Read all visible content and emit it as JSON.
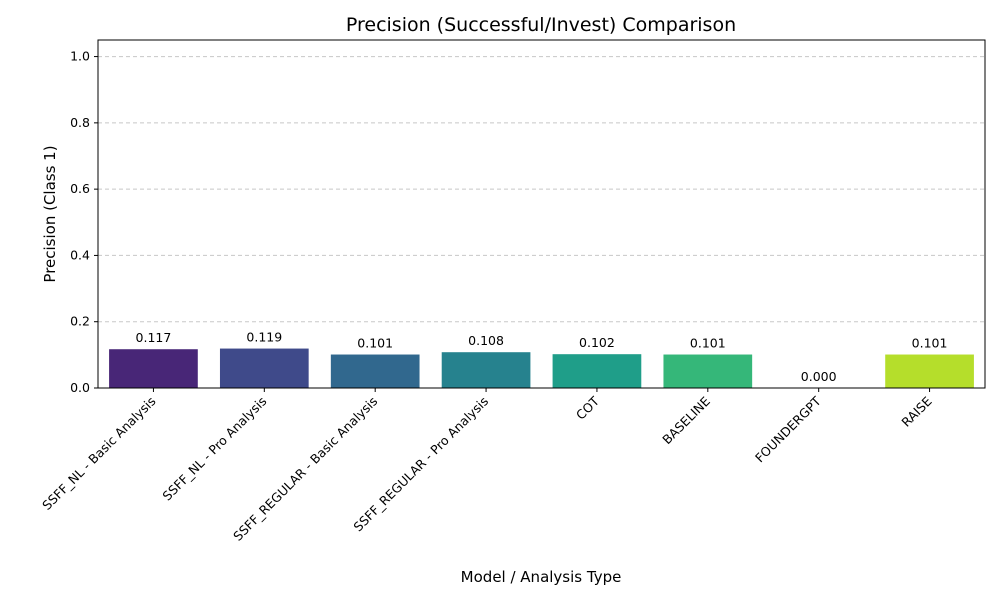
{
  "chart_data": {
    "type": "bar",
    "title": "Precision (Successful/Invest) Comparison",
    "xlabel": "Model / Analysis Type",
    "ylabel": "Precision (Class 1)",
    "categories": [
      "SSFF_NL - Basic Analysis",
      "SSFF_NL - Pro Analysis",
      "SSFF_REGULAR - Basic Analysis",
      "SSFF_REGULAR - Pro Analysis",
      "COT",
      "BASELINE",
      "FOUNDERGPT",
      "RAISE"
    ],
    "values": [
      0.117,
      0.119,
      0.101,
      0.108,
      0.102,
      0.101,
      0.0,
      0.101
    ],
    "value_labels": [
      "0.117",
      "0.119",
      "0.101",
      "0.108",
      "0.102",
      "0.101",
      "0.000",
      "0.101"
    ],
    "colors": [
      "#482677",
      "#3F4A8A",
      "#31688E",
      "#26828E",
      "#1F9E89",
      "#35B779",
      "#6ECE58",
      "#B5DE2B"
    ],
    "ylim": [
      0,
      1.05
    ],
    "yticks": [
      0.0,
      0.2,
      0.4,
      0.6,
      0.8,
      1.0
    ],
    "ytick_labels": [
      "0.0",
      "0.2",
      "0.4",
      "0.6",
      "0.8",
      "1.0"
    ],
    "grid": "y-dashed",
    "legend": "none"
  }
}
